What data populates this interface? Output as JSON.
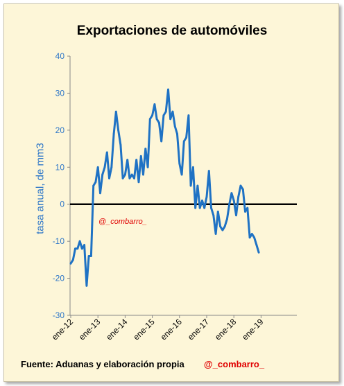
{
  "chart_data": {
    "type": "line",
    "title": "Exportaciones de automóviles",
    "xlabel": "",
    "ylabel": "tasa anual,  de mm3",
    "ylim": [
      -30,
      40
    ],
    "yticks": [
      "-30",
      "-20",
      "-10",
      "0",
      "10",
      "20",
      "30",
      "40"
    ],
    "xticks": [
      "ene-12",
      "ene-13",
      "ene-14",
      "ene-15",
      "ene-16",
      "ene-17",
      "ene-18",
      "ene-19"
    ],
    "grid": false,
    "reference_line": 0,
    "series": [
      {
        "color": "#1f72c4",
        "x_start": "ene-12",
        "x_step": "mes",
        "values": [
          -16,
          -15,
          -12,
          -12,
          -10,
          -12,
          -11,
          -22,
          -14,
          -14,
          5,
          6,
          10,
          3,
          8,
          10,
          14,
          7,
          10,
          19,
          25,
          20,
          16,
          7,
          8,
          12,
          7,
          8,
          7,
          12,
          6,
          13,
          8,
          15,
          10,
          23,
          24,
          27,
          23,
          22,
          17,
          24,
          25,
          31,
          23,
          25,
          21,
          19,
          11,
          8,
          17,
          18,
          24,
          5,
          10,
          -1,
          5,
          -1,
          1,
          -1,
          2,
          9,
          -1,
          -3,
          -8,
          -2,
          -6,
          -7,
          -6,
          -4,
          0,
          3,
          1,
          -3,
          2,
          5,
          4,
          -2,
          -1,
          -9,
          -8,
          -9,
          -11,
          -13
        ]
      }
    ]
  },
  "annotations": {
    "watermark": "@_combarro_",
    "source": "Fuente: Aduanas y elaboración propia",
    "handle": "@_combarro_"
  }
}
